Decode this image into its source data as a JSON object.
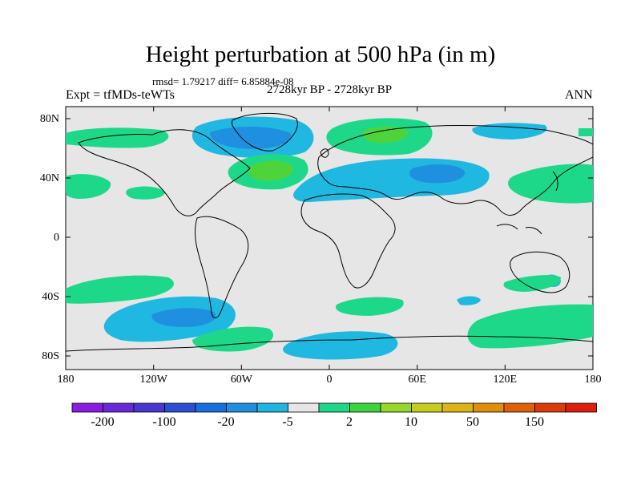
{
  "title": "Height perturbation at 500 hPa (in m)",
  "stats": "rmsd= 1.79217 diff= 6.85884e-08",
  "experiment": "Expt = tfMDs-teWTs",
  "period": "2728kyr BP - 2728kyr BP",
  "season": "ANN",
  "lat_ticks": [
    "80N",
    "40N",
    "0",
    "40S",
    "80S"
  ],
  "lon_ticks": [
    "180",
    "120W",
    "60W",
    "0",
    "60E",
    "120E",
    "180"
  ],
  "colorbar": {
    "labels": [
      "-200",
      "-100",
      "-20",
      "-5",
      "2",
      "10",
      "50",
      "150"
    ],
    "colors": [
      "#8a1be0",
      "#6a27d8",
      "#4a36d0",
      "#2a4fd4",
      "#1470dc",
      "#1f90e0",
      "#20b4e0",
      "#e6e6e6",
      "#1ed889",
      "#3cd43c",
      "#94d82a",
      "#c8cc1e",
      "#dcb414",
      "#e08c0c",
      "#e0600a",
      "#dc3a08",
      "#dc1e0a"
    ]
  },
  "colors": {
    "background": "#e6e6e6",
    "neg_light": "#1fb8e0",
    "neg_mid": "#1f90e0",
    "pos_light": "#1ed889",
    "pos_mid": "#4ed43a"
  }
}
